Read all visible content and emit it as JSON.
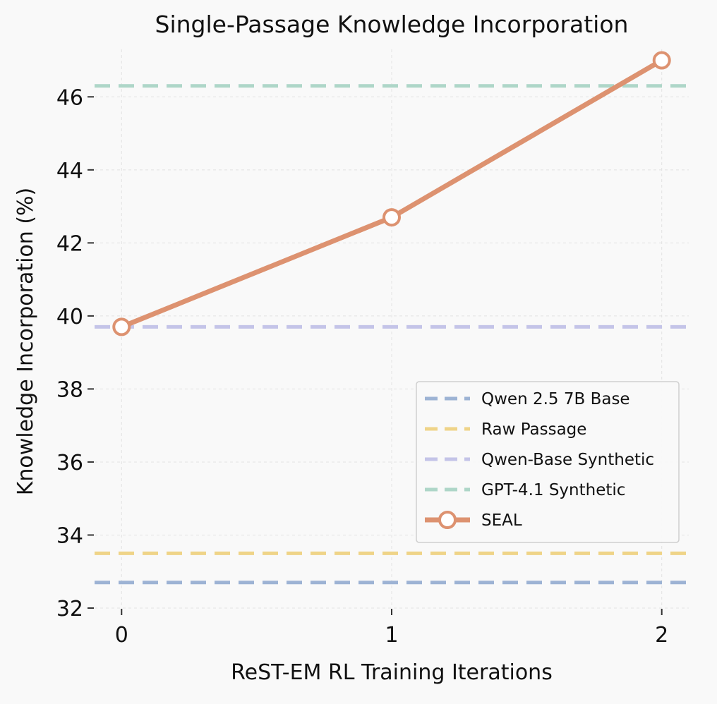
{
  "chart_data": {
    "type": "line",
    "title": "Single-Passage Knowledge Incorporation",
    "xlabel": "ReST-EM RL Training Iterations",
    "ylabel": "Knowledge Incorporation (%)",
    "x": [
      0,
      1,
      2
    ],
    "xlim": [
      -0.1,
      2.1
    ],
    "ylim": [
      32,
      47.3
    ],
    "xticks": [
      "0",
      "1",
      "2"
    ],
    "yticks": [
      "32",
      "34",
      "36",
      "38",
      "40",
      "42",
      "44",
      "46"
    ],
    "grid": true,
    "legend_position": "lower-right",
    "series": [
      {
        "name": "SEAL",
        "kind": "line",
        "values": [
          39.7,
          42.7,
          47.0
        ],
        "color": "#dd9270"
      }
    ],
    "reference_lines": [
      {
        "name": "Qwen 2.5 7B Base",
        "value": 32.7,
        "color": "#9db3d4"
      },
      {
        "name": "Raw Passage",
        "value": 33.5,
        "color": "#efd488"
      },
      {
        "name": "Qwen-Base Synthetic",
        "value": 39.7,
        "color": "#c4c4e8"
      },
      {
        "name": "GPT-4.1 Synthetic",
        "value": 46.3,
        "color": "#aed6c8"
      }
    ]
  }
}
